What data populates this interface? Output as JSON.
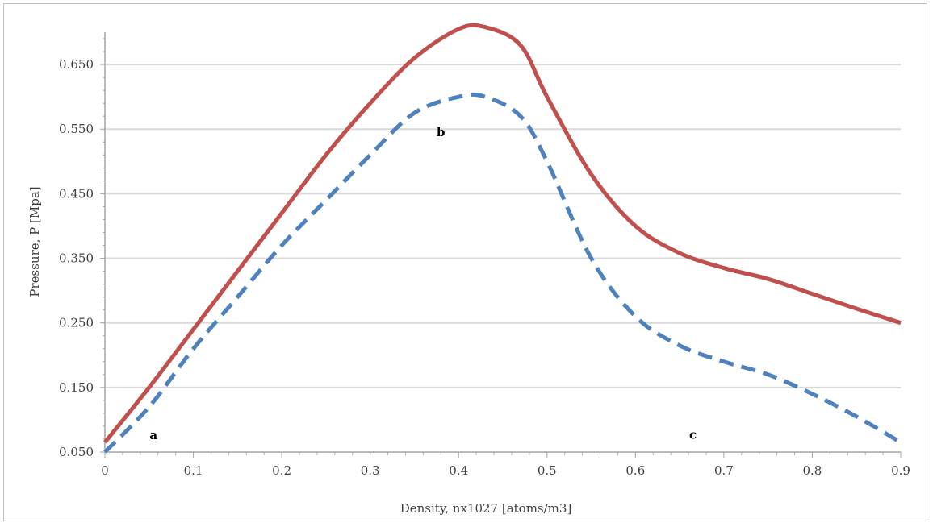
{
  "chart_data": {
    "type": "line",
    "title": "",
    "xlabel": "Density, nx1027 [atoms/m3]",
    "ylabel": "Pressure, P [Mpa]",
    "xlim": [
      0,
      0.9
    ],
    "ylim": [
      0.05,
      0.7
    ],
    "x_ticks": [
      "0",
      "0.1",
      "0.2",
      "0.3",
      "0.4",
      "0.5",
      "0.6",
      "0.7",
      "0.8",
      "0.9"
    ],
    "y_ticks": [
      "0.050",
      "0.150",
      "0.250",
      "0.350",
      "0.450",
      "0.550",
      "0.650"
    ],
    "grid": "horizontal",
    "legend": "none",
    "series": [
      {
        "color": "#C0504D",
        "style": "solid",
        "x": [
          0,
          0.05,
          0.1,
          0.15,
          0.2,
          0.25,
          0.3,
          0.35,
          0.4,
          0.43,
          0.47,
          0.5,
          0.55,
          0.6,
          0.65,
          0.7,
          0.75,
          0.8,
          0.85,
          0.9
        ],
        "y": [
          0.065,
          0.15,
          0.24,
          0.33,
          0.42,
          0.51,
          0.59,
          0.66,
          0.705,
          0.708,
          0.68,
          0.6,
          0.48,
          0.4,
          0.358,
          0.335,
          0.318,
          0.295,
          0.272,
          0.25
        ]
      },
      {
        "color": "#4F81BD",
        "style": "dashed",
        "x": [
          0,
          0.05,
          0.1,
          0.15,
          0.2,
          0.25,
          0.3,
          0.35,
          0.4,
          0.43,
          0.47,
          0.5,
          0.55,
          0.6,
          0.65,
          0.7,
          0.75,
          0.8,
          0.85,
          0.9
        ],
        "y": [
          0.05,
          0.12,
          0.21,
          0.29,
          0.37,
          0.44,
          0.51,
          0.575,
          0.6,
          0.6,
          0.57,
          0.5,
          0.35,
          0.26,
          0.215,
          0.19,
          0.17,
          0.14,
          0.105,
          0.065
        ]
      }
    ],
    "annotations": [
      {
        "text": "a",
        "x": 0.055,
        "y": 0.076
      },
      {
        "text": "b",
        "x": 0.38,
        "y": 0.545
      },
      {
        "text": "c",
        "x": 0.665,
        "y": 0.077
      }
    ]
  }
}
